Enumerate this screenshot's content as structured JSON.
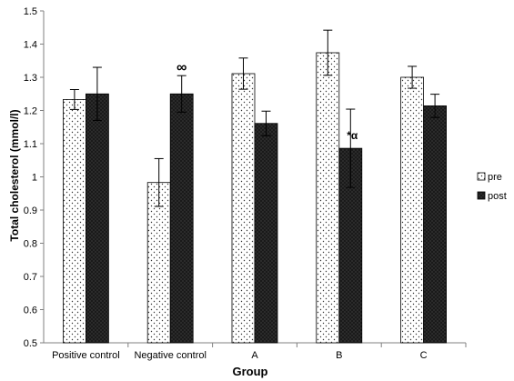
{
  "chart_data": {
    "type": "bar",
    "ylabel": "Total cholesterol (mmol/l)",
    "xlabel": "Group",
    "ylim": [
      0.5,
      1.5
    ],
    "yticks": [
      "0.5",
      "0.6",
      "0.7",
      "0.8",
      "0.9",
      "1",
      "1.1",
      "1.2",
      "1.3",
      "1.4",
      "1.5"
    ],
    "categories": [
      "Positive control",
      "Negative control",
      "A",
      "B",
      "C"
    ],
    "series": [
      {
        "name": "pre",
        "values": [
          1.233,
          0.983,
          1.311,
          1.374,
          1.3
        ],
        "errors": [
          0.03,
          0.072,
          0.047,
          0.068,
          0.033
        ]
      },
      {
        "name": "post",
        "values": [
          1.25,
          1.25,
          1.161,
          1.086,
          1.214
        ],
        "errors": [
          0.08,
          0.055,
          0.037,
          0.118,
          0.035
        ]
      }
    ],
    "annotations": [
      {
        "category": "Negative control",
        "series": "post",
        "text": "∞"
      },
      {
        "category": "B",
        "series": "post",
        "text": "*α"
      }
    ],
    "legend_position": "right",
    "grid": false,
    "colors": {
      "pre_fill": "#ffffff",
      "pre_dots": "#333333",
      "post_fill": "#1a1a1a",
      "post_dots": "#555555",
      "axis": "#808080"
    }
  }
}
